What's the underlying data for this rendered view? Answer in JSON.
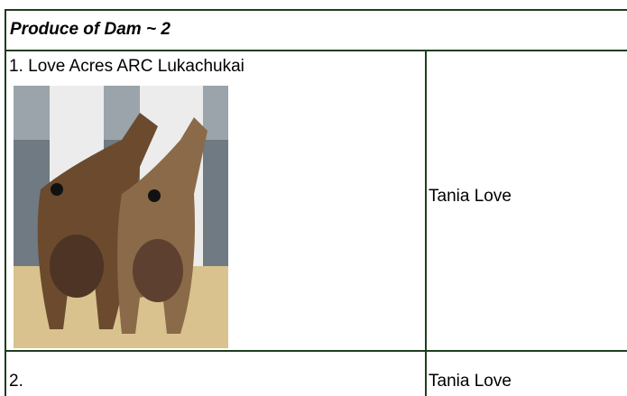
{
  "header": {
    "title": "Produce of Dam ~ 2"
  },
  "table": {
    "rows": [
      [
        "1. Love Acres ARC Lukachukai",
        "Tania Love"
      ],
      [
        "2.",
        "Tania Love"
      ]
    ]
  }
}
